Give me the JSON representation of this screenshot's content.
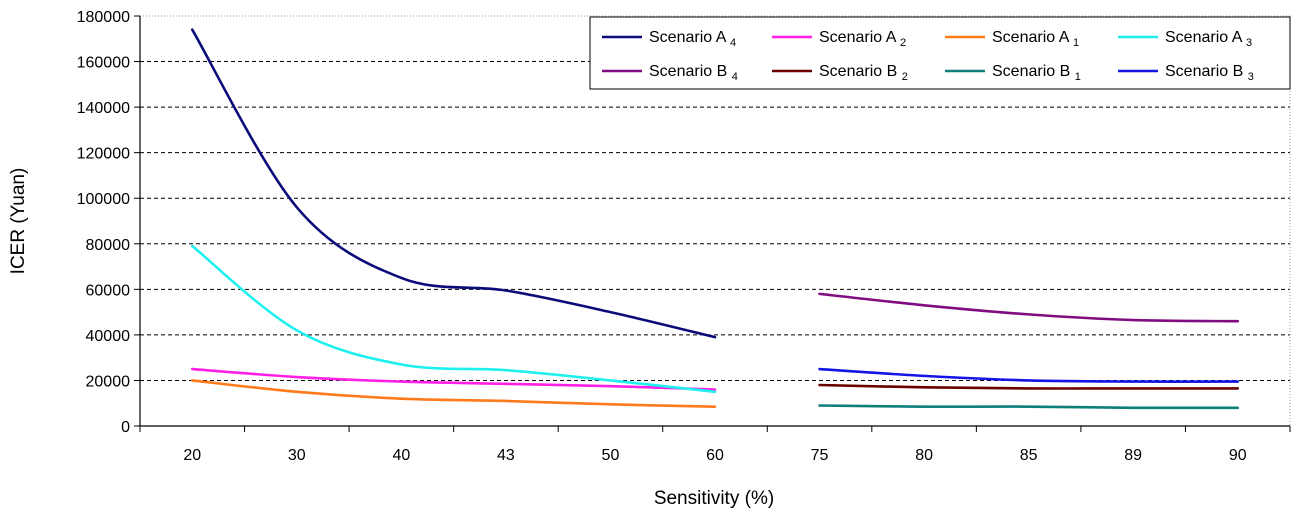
{
  "chart_data": {
    "type": "line",
    "xlabel": "Sensitivity (%)",
    "ylabel": "ICER (Yuan)",
    "ylim": [
      0,
      180000
    ],
    "yticks": [
      0,
      20000,
      40000,
      60000,
      80000,
      100000,
      120000,
      140000,
      160000,
      180000
    ],
    "categories": [
      "20",
      "30",
      "40",
      "43",
      "50",
      "60",
      "75",
      "80",
      "85",
      "89",
      "90"
    ],
    "grid": "horizontal-dashed",
    "legend": "top-right",
    "series": [
      {
        "name": "Scenario A",
        "sub": "4",
        "color": "#0b0b7a",
        "values": [
          174000,
          96000,
          65000,
          59500,
          50000,
          39000,
          null,
          null,
          null,
          null,
          null
        ]
      },
      {
        "name": "Scenario A",
        "sub": "2",
        "color": "#ff1fe6",
        "values": [
          25000,
          21500,
          19500,
          18500,
          17500,
          16000,
          null,
          null,
          null,
          null,
          null
        ]
      },
      {
        "name": "Scenario A",
        "sub": "1",
        "color": "#ff7a1a",
        "values": [
          20000,
          15000,
          12000,
          11000,
          9500,
          8500,
          null,
          null,
          null,
          null,
          null
        ]
      },
      {
        "name": "Scenario A",
        "sub": "3",
        "color": "#1ef0f0",
        "values": [
          79000,
          42000,
          27000,
          24500,
          20000,
          15000,
          null,
          null,
          null,
          null,
          null
        ]
      },
      {
        "name": "Scenario B",
        "sub": "4",
        "color": "#800c80",
        "values": [
          null,
          null,
          null,
          null,
          null,
          null,
          58000,
          53000,
          49000,
          46500,
          46000
        ]
      },
      {
        "name": "Scenario B",
        "sub": "2",
        "color": "#6a0000",
        "values": [
          null,
          null,
          null,
          null,
          null,
          null,
          18000,
          17000,
          16500,
          16500,
          16500
        ]
      },
      {
        "name": "Scenario B",
        "sub": "1",
        "color": "#0d7f7a",
        "values": [
          null,
          null,
          null,
          null,
          null,
          null,
          9000,
          8500,
          8500,
          8000,
          8000
        ]
      },
      {
        "name": "Scenario B",
        "sub": "3",
        "color": "#1414e6",
        "values": [
          null,
          null,
          null,
          null,
          null,
          null,
          25000,
          22000,
          20000,
          19500,
          19500
        ]
      }
    ]
  }
}
